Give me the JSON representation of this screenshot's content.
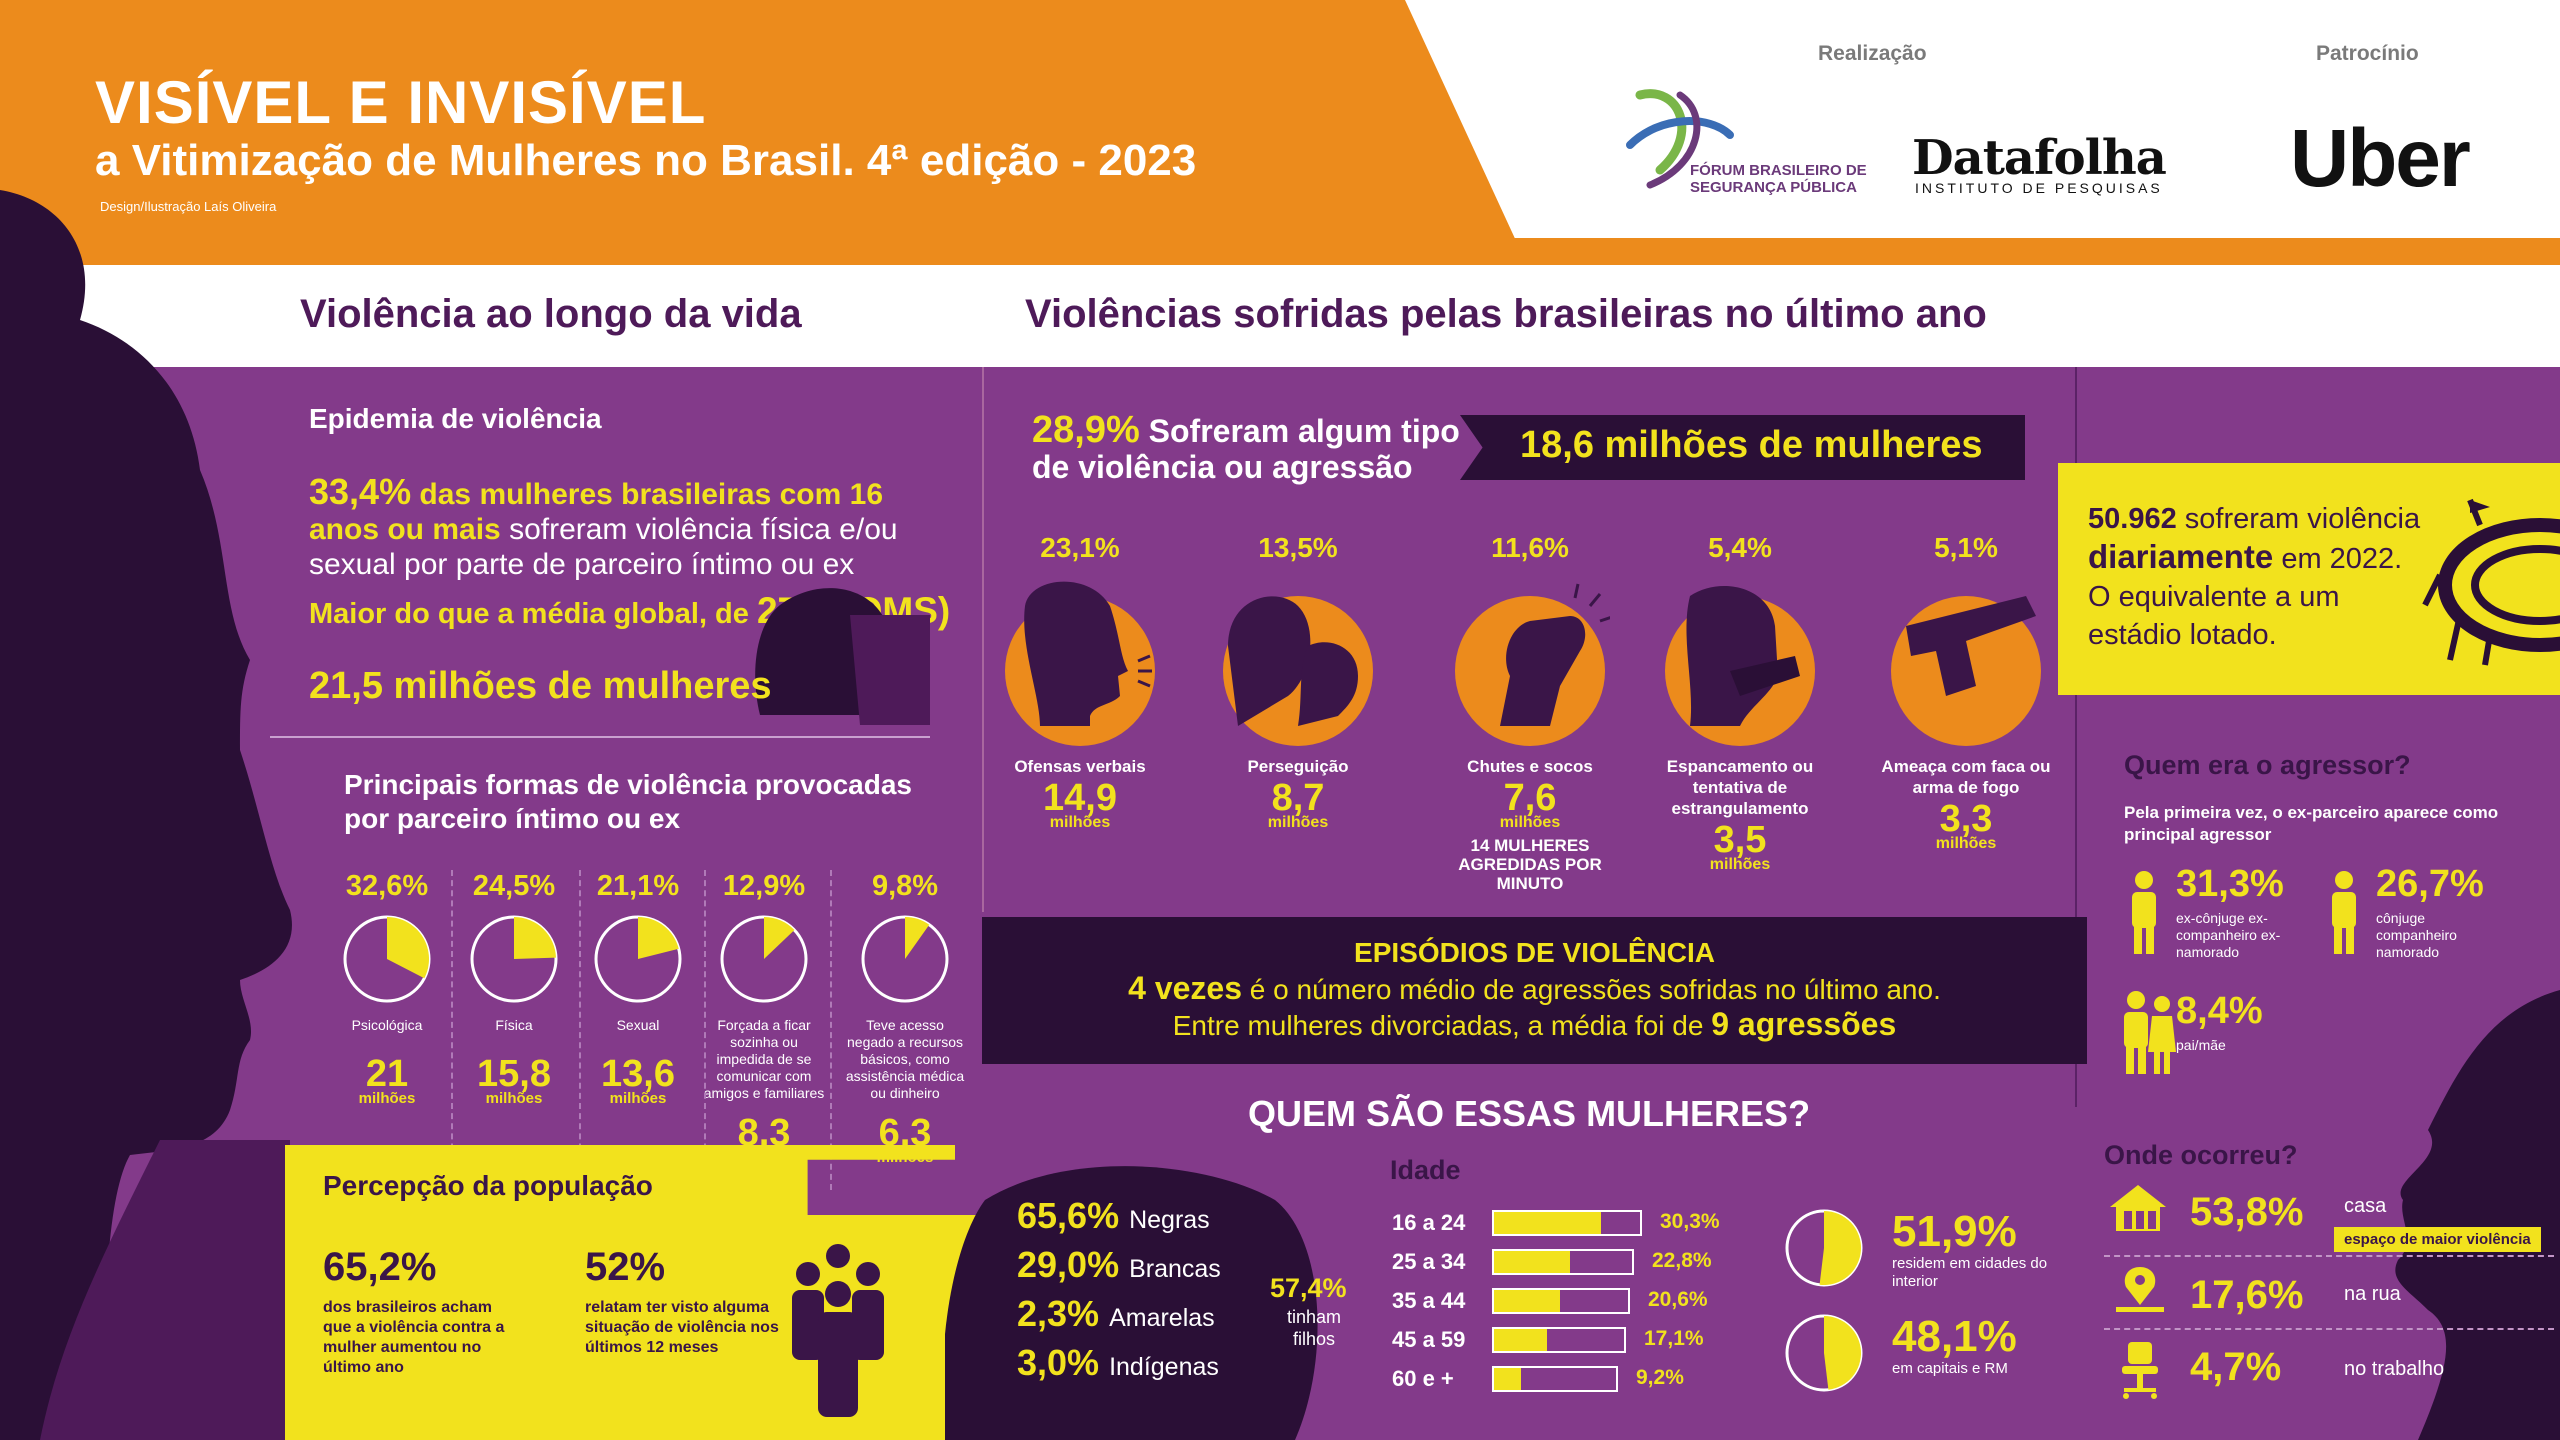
{
  "header": {
    "title": "VISÍVEL E INVISÍVEL",
    "subtitle": "a Vitimização de Mulheres no Brasil. 4ª edição - 2023",
    "credit": "Design/Ilustração Laís Oliveira",
    "realizacao_label": "Realização",
    "patrocinio_label": "Patrocínio",
    "fbsp_line1": "FÓRUM BRASILEIRO DE",
    "fbsp_line2": "SEGURANÇA PÚBLICA",
    "datafolha": "Datafolha",
    "datafolha_sub": "INSTITUTO DE PESQUISAS",
    "uber": "Uber"
  },
  "sections": {
    "left_title": "Violência ao longo da vida",
    "right_title": "Violências sofridas pelas brasileiras no último ano"
  },
  "epidemia": {
    "title": "Epidemia de violência",
    "pct": "33,4%",
    "highlight": "das mulheres brasileiras com 16 anos ou mais",
    "text": "sofreram violência física e/ou sexual por parte de parceiro íntimo ou ex",
    "maior": "Maior do que a média global, de",
    "maior_value": "27% (OMS)",
    "total": "21,5 milhões de mulheres"
  },
  "principais": {
    "title": "Principais formas de violência provocadas por parceiro íntimo ou ex",
    "items": [
      {
        "pct": "32,6%",
        "fraction": 0.326,
        "label": "Psicológica",
        "num": "21",
        "unit": "milhões"
      },
      {
        "pct": "24,5%",
        "fraction": 0.245,
        "label": "Física",
        "num": "15,8",
        "unit": "milhões"
      },
      {
        "pct": "21,1%",
        "fraction": 0.211,
        "label": "Sexual",
        "num": "13,6",
        "unit": "milhões"
      },
      {
        "pct": "12,9%",
        "fraction": 0.129,
        "label": "Forçada a ficar sozinha ou impedida de se comunicar com amigos e familiares",
        "num": "8,3",
        "unit": "milhões"
      },
      {
        "pct": "9,8%",
        "fraction": 0.098,
        "label": "Teve acesso negado a recursos básicos, como assistência médica ou dinheiro",
        "num": "6,3",
        "unit": "milhões"
      }
    ]
  },
  "percepcao": {
    "title": "Percepção da população",
    "a_num": "65,2%",
    "a_text": "dos brasileiros acham que a violência contra a mulher aumentou no último ano",
    "b_num": "52%",
    "b_text": "relatam ter visto alguma situação de violência nos últimos 12 meses"
  },
  "ultimo_ano": {
    "pct": "28,9%",
    "line1": "Sofreram algum tipo",
    "line2": "de violência ou agressão",
    "total": "18,6 milhões de mulheres",
    "items": [
      {
        "pct": "23,1%",
        "icon": "verbal-offense-icon",
        "label": "Ofensas verbais",
        "num": "14,9",
        "unit": "milhões"
      },
      {
        "pct": "13,5%",
        "icon": "stalking-icon",
        "label": "Perseguição",
        "num": "8,7",
        "unit": "milhões"
      },
      {
        "pct": "11,6%",
        "icon": "fist-icon",
        "label": "Chutes e socos",
        "num": "7,6",
        "unit": "milhões",
        "note": "14 MULHERES AGREDIDAS POR MINUTO"
      },
      {
        "pct": "5,4%",
        "icon": "strangle-icon",
        "label": "Espancamento ou tentativa de estrangulamento",
        "num": "3,5",
        "unit": "milhões"
      },
      {
        "pct": "5,1%",
        "icon": "gun-icon",
        "label": "Ameaça com faca ou arma de fogo",
        "num": "3,3",
        "unit": "milhões"
      }
    ]
  },
  "episodios": {
    "title": "EPISÓDIOS DE VIOLÊNCIA",
    "l1_highlight": "4 vezes",
    "l1_text": "é o número médio de agressões sofridas no último ano.",
    "l2_text": "Entre mulheres divorciadas, a média foi de",
    "l2_highlight": "9 agressões"
  },
  "estadio": {
    "num": "50.962",
    "t1": "sofreram",
    "t2": "violência",
    "highlight": "diariamente",
    "t3": "em 2022. O equivalente a um estádio lotado."
  },
  "agressor": {
    "title": "Quem era o agressor?",
    "subtitle": "Pela primeira vez, o ex-parceiro aparece como principal agressor",
    "items": [
      {
        "num": "31,3%",
        "label": "ex-cônjuge ex-companheiro ex-namorado"
      },
      {
        "num": "26,7%",
        "label": "cônjuge companheiro namorado"
      },
      {
        "num": "8,4%",
        "label": "pai/mãe"
      }
    ]
  },
  "onde": {
    "title": "Onde ocorreu?",
    "items": [
      {
        "num": "53,8%",
        "label": "casa",
        "badge": "espaço de maior violência",
        "icon": "house-icon"
      },
      {
        "num": "17,6%",
        "label": "na rua",
        "icon": "location-pin-icon"
      },
      {
        "num": "4,7%",
        "label": "no trabalho",
        "icon": "office-chair-icon"
      }
    ]
  },
  "quem_sao": {
    "title": "QUEM SÃO ESSAS MULHERES?",
    "races": [
      {
        "pct": "65,6%",
        "label": "Negras"
      },
      {
        "pct": "29,0%",
        "label": "Brancas"
      },
      {
        "pct": "2,3%",
        "label": "Amarelas"
      },
      {
        "pct": "3,0%",
        "label": "Indígenas"
      }
    ],
    "filhos_pct": "57,4%",
    "filhos_label": "tinham filhos",
    "idade_title": "Idade",
    "ages": [
      {
        "label": "16 a 24",
        "pct": "30,3%",
        "fraction": 0.303
      },
      {
        "label": "25 a 34",
        "pct": "22,8%",
        "fraction": 0.228
      },
      {
        "label": "35 a 44",
        "pct": "20,6%",
        "fraction": 0.206
      },
      {
        "label": "45 a 59",
        "pct": "17,1%",
        "fraction": 0.171
      },
      {
        "label": "60 e +",
        "pct": "9,2%",
        "fraction": 0.092
      }
    ],
    "residencia": [
      {
        "pct": "51,9%",
        "fraction": 0.519,
        "label": "residem em cidades do interior"
      },
      {
        "pct": "48,1%",
        "fraction": 0.481,
        "label": "em capitais e RM"
      }
    ]
  },
  "colors": {
    "orange": "#ec8b1c",
    "purple": "#833a8a",
    "dark": "#2a0f36",
    "yellow": "#f2e21d"
  }
}
